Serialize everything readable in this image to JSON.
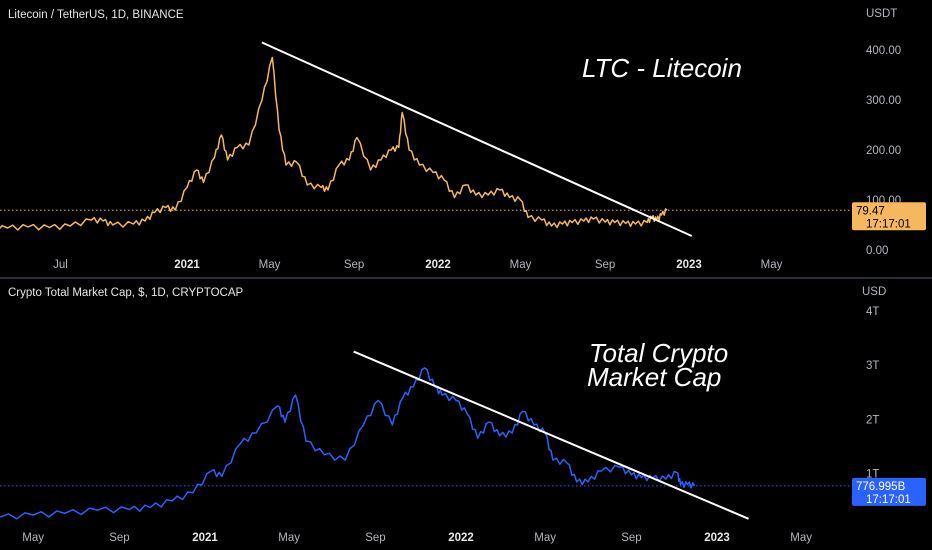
{
  "chart_data": [
    {
      "type": "line",
      "title": "Litecoin / TetherUS, 1D, BINANCE",
      "currency": "USDT",
      "color": "#f5b85c",
      "trendline_color": "#ffffff",
      "annotation": "LTC - Litecoin",
      "y_ticks": [
        "0.00",
        "100.00",
        "200.00",
        "300.00",
        "400.00"
      ],
      "ylim": [
        0,
        420
      ],
      "x_labels": [
        {
          "label": "Jul",
          "year": false
        },
        {
          "label": "2021",
          "year": true
        },
        {
          "label": "May",
          "year": false
        },
        {
          "label": "Sep",
          "year": false
        },
        {
          "label": "2022",
          "year": true
        },
        {
          "label": "May",
          "year": false
        },
        {
          "label": "Sep",
          "year": false
        },
        {
          "label": "2023",
          "year": true
        },
        {
          "label": "May",
          "year": false
        }
      ],
      "last_price": "79.47",
      "last_time": "17:17:01",
      "series": [
        {
          "points": [
            [
              "2020-03-15",
              42
            ],
            [
              "2020-04-15",
              44
            ],
            [
              "2020-05-15",
              46
            ],
            [
              "2020-06-15",
              45
            ],
            [
              "2020-07-15",
              48
            ],
            [
              "2020-08-15",
              60
            ],
            [
              "2020-09-01",
              58
            ],
            [
              "2020-09-15",
              50
            ],
            [
              "2020-10-15",
              52
            ],
            [
              "2020-11-01",
              58
            ],
            [
              "2020-11-15",
              75
            ],
            [
              "2020-12-01",
              85
            ],
            [
              "2020-12-15",
              80
            ],
            [
              "2021-01-01",
              125
            ],
            [
              "2021-01-15",
              160
            ],
            [
              "2021-01-25",
              135
            ],
            [
              "2021-02-10",
              185
            ],
            [
              "2021-02-20",
              230
            ],
            [
              "2021-03-01",
              180
            ],
            [
              "2021-03-15",
              205
            ],
            [
              "2021-04-01",
              210
            ],
            [
              "2021-04-20",
              300
            ],
            [
              "2021-05-05",
              385
            ],
            [
              "2021-05-15",
              240
            ],
            [
              "2021-05-25",
              170
            ],
            [
              "2021-06-10",
              175
            ],
            [
              "2021-06-25",
              130
            ],
            [
              "2021-07-15",
              125
            ],
            [
              "2021-07-25",
              120
            ],
            [
              "2021-08-10",
              170
            ],
            [
              "2021-08-25",
              180
            ],
            [
              "2021-09-05",
              225
            ],
            [
              "2021-09-25",
              160
            ],
            [
              "2021-10-10",
              180
            ],
            [
              "2021-10-25",
              200
            ],
            [
              "2021-11-05",
              205
            ],
            [
              "2021-11-10",
              275
            ],
            [
              "2021-11-20",
              200
            ],
            [
              "2021-12-05",
              170
            ],
            [
              "2021-12-25",
              155
            ],
            [
              "2022-01-10",
              140
            ],
            [
              "2022-01-25",
              105
            ],
            [
              "2022-02-10",
              130
            ],
            [
              "2022-02-25",
              110
            ],
            [
              "2022-03-15",
              110
            ],
            [
              "2022-04-01",
              120
            ],
            [
              "2022-04-15",
              105
            ],
            [
              "2022-05-01",
              100
            ],
            [
              "2022-05-12",
              65
            ],
            [
              "2022-06-01",
              60
            ],
            [
              "2022-06-15",
              48
            ],
            [
              "2022-07-01",
              52
            ],
            [
              "2022-07-15",
              55
            ],
            [
              "2022-08-01",
              58
            ],
            [
              "2022-08-15",
              62
            ],
            [
              "2022-09-01",
              56
            ],
            [
              "2022-09-15",
              55
            ],
            [
              "2022-10-01",
              53
            ],
            [
              "2022-10-15",
              52
            ],
            [
              "2022-11-01",
              55
            ],
            [
              "2022-11-08",
              65
            ],
            [
              "2022-11-15",
              60
            ],
            [
              "2022-11-22",
              70
            ],
            [
              "2022-11-30",
              79.47
            ]
          ]
        }
      ],
      "trendline": [
        [
          "2021-04-20",
          415
        ],
        [
          "2023-01-05",
          28
        ]
      ]
    },
    {
      "type": "line",
      "title": "Crypto Total Market Cap, $, 1D, CRYPTOCAP",
      "currency": "USD",
      "color": "#2962ff",
      "trendline_color": "#ffffff",
      "annotation_lines": [
        "Total Crypto",
        "Market Cap"
      ],
      "y_ticks": [
        "1T",
        "2T",
        "3T",
        "4T"
      ],
      "ylim": [
        0,
        4.2
      ],
      "x_labels": [
        {
          "label": "May",
          "year": false
        },
        {
          "label": "Sep",
          "year": false
        },
        {
          "label": "2021",
          "year": true
        },
        {
          "label": "May",
          "year": false
        },
        {
          "label": "Sep",
          "year": false
        },
        {
          "label": "2022",
          "year": true
        },
        {
          "label": "May",
          "year": false
        },
        {
          "label": "Sep",
          "year": false
        },
        {
          "label": "2023",
          "year": true
        },
        {
          "label": "May",
          "year": false
        }
      ],
      "last_price": "776.995B",
      "last_time": "17:17:01",
      "series": [
        {
          "points": [
            [
              "2020-03-15",
              0.2
            ],
            [
              "2020-05-01",
              0.24
            ],
            [
              "2020-06-15",
              0.27
            ],
            [
              "2020-08-01",
              0.33
            ],
            [
              "2020-09-15",
              0.34
            ],
            [
              "2020-10-15",
              0.38
            ],
            [
              "2020-11-15",
              0.5
            ],
            [
              "2020-12-15",
              0.65
            ],
            [
              "2021-01-10",
              1.05
            ],
            [
              "2021-01-25",
              0.95
            ],
            [
              "2021-02-20",
              1.55
            ],
            [
              "2021-03-15",
              1.75
            ],
            [
              "2021-04-15",
              2.25
            ],
            [
              "2021-04-25",
              1.95
            ],
            [
              "2021-05-10",
              2.45
            ],
            [
              "2021-05-25",
              1.6
            ],
            [
              "2021-06-20",
              1.35
            ],
            [
              "2021-07-20",
              1.25
            ],
            [
              "2021-08-15",
              1.9
            ],
            [
              "2021-09-05",
              2.35
            ],
            [
              "2021-09-25",
              1.9
            ],
            [
              "2021-10-10",
              2.4
            ],
            [
              "2021-10-25",
              2.6
            ],
            [
              "2021-11-10",
              2.95
            ],
            [
              "2021-11-25",
              2.6
            ],
            [
              "2021-12-05",
              2.45
            ],
            [
              "2021-12-25",
              2.35
            ],
            [
              "2022-01-10",
              2.1
            ],
            [
              "2022-01-25",
              1.65
            ],
            [
              "2022-02-10",
              1.95
            ],
            [
              "2022-02-25",
              1.7
            ],
            [
              "2022-03-15",
              1.75
            ],
            [
              "2022-03-30",
              2.15
            ],
            [
              "2022-04-15",
              1.9
            ],
            [
              "2022-05-01",
              1.75
            ],
            [
              "2022-05-12",
              1.25
            ],
            [
              "2022-06-01",
              1.2
            ],
            [
              "2022-06-15",
              0.85
            ],
            [
              "2022-07-01",
              0.85
            ],
            [
              "2022-07-20",
              1.05
            ],
            [
              "2022-08-15",
              1.12
            ],
            [
              "2022-09-01",
              0.98
            ],
            [
              "2022-09-15",
              0.93
            ],
            [
              "2022-10-01",
              0.92
            ],
            [
              "2022-10-20",
              0.9
            ],
            [
              "2022-11-05",
              1.02
            ],
            [
              "2022-11-10",
              0.8
            ],
            [
              "2022-11-20",
              0.8
            ],
            [
              "2022-11-30",
              0.777
            ]
          ]
        }
      ],
      "trendline": [
        [
          "2021-08-01",
          3.25
        ],
        [
          "2023-02-15",
          0.17
        ]
      ]
    }
  ]
}
